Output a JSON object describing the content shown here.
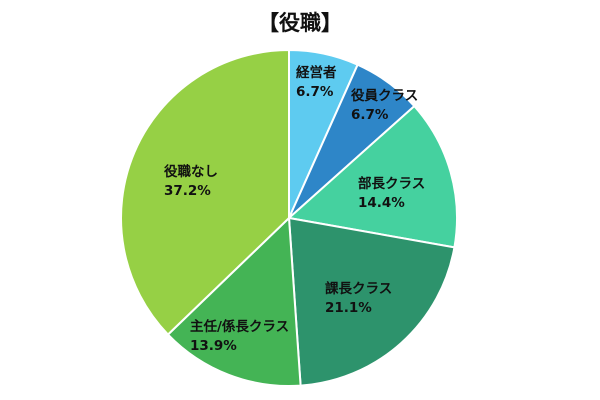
{
  "chart_data": {
    "type": "pie",
    "title": "【役職】",
    "start_angle_deg": 0,
    "direction": "clockwise",
    "slices": [
      {
        "label": "経営者",
        "value": 6.7,
        "value_label": "6.7%",
        "color": "#5ecbf0"
      },
      {
        "label": "役員クラス",
        "value": 6.7,
        "value_label": "6.7%",
        "color": "#2e86c8"
      },
      {
        "label": "部長クラス",
        "value": 14.4,
        "value_label": "14.4%",
        "color": "#45d19f"
      },
      {
        "label": "課長クラス",
        "value": 21.1,
        "value_label": "21.1%",
        "color": "#2d936c"
      },
      {
        "label": "主任/係長クラス",
        "value": 13.9,
        "value_label": "13.9%",
        "color": "#44b455"
      },
      {
        "label": "役職なし",
        "value": 37.2,
        "value_label": "37.2%",
        "color": "#96d045"
      }
    ]
  }
}
